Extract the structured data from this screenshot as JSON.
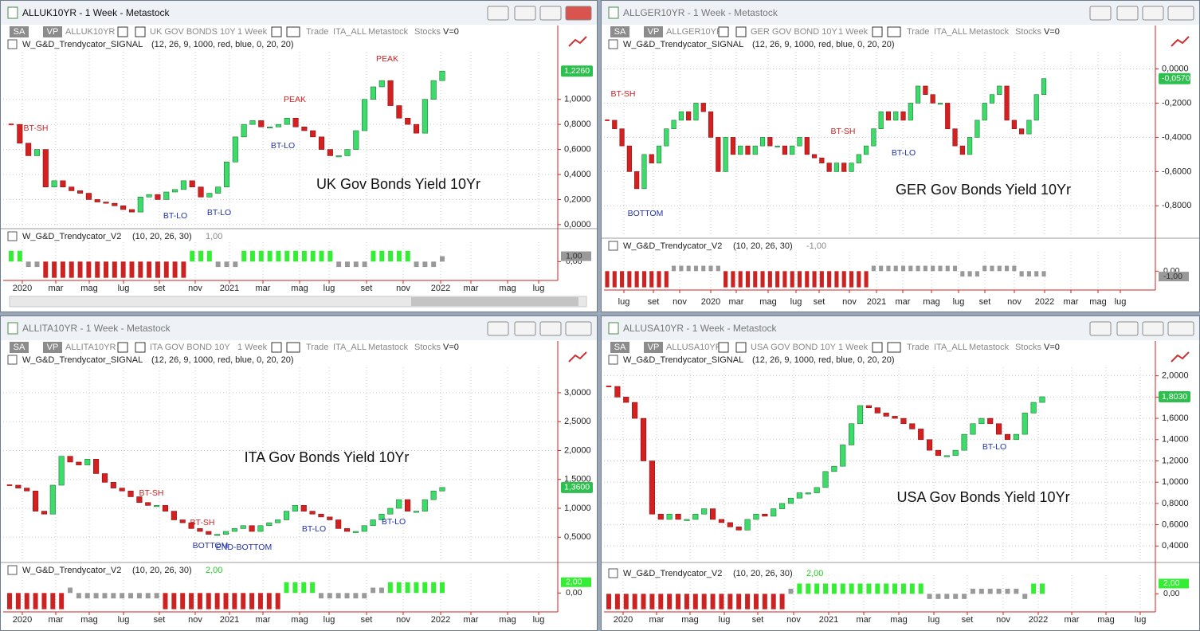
{
  "chart_data": [
    {
      "type": "candlestick",
      "title": "ALLUK10YR - 1 Week - Metastock",
      "buttons": [
        "SA",
        "VP"
      ],
      "symbol": "ALLUK10YR",
      "name": "UK GOV BONDS 10Y",
      "period": "1 Week",
      "toolbar": [
        "Trade",
        "ITA_ALL",
        "Metastock",
        "Stocks",
        "V=0"
      ],
      "signal": {
        "name": "W_G&D_Trendycator_SIGNAL",
        "params": "(12, 26, 9, 1000, red, blue, 0, 20, 20)"
      },
      "subtitle": "UK Gov Bonds Yield 10Yr",
      "annotations": [
        {
          "text": "BT-SH",
          "color": "#cc2222"
        },
        {
          "text": "BT-LO",
          "color": "#2233aa"
        },
        {
          "text": "BT-LO",
          "color": "#2233aa"
        },
        {
          "text": "PEAK",
          "color": "#cc2222"
        },
        {
          "text": "BT-LO",
          "color": "#2233aa"
        },
        {
          "text": "PEAK",
          "color": "#cc2222"
        }
      ],
      "colors": {
        "up": "#3ddc6a",
        "down": "#d42020"
      },
      "values": [
        0.8,
        0.65,
        0.55,
        0.6,
        0.3,
        0.35,
        0.3,
        0.27,
        0.25,
        0.2,
        0.18,
        0.17,
        0.15,
        0.12,
        0.1,
        0.22,
        0.24,
        0.2,
        0.26,
        0.28,
        0.35,
        0.3,
        0.22,
        0.25,
        0.3,
        0.5,
        0.7,
        0.8,
        0.83,
        0.78,
        0.78,
        0.8,
        0.85,
        0.78,
        0.75,
        0.7,
        0.6,
        0.55,
        0.55,
        0.6,
        0.75,
        1.0,
        1.1,
        1.15,
        0.95,
        0.85,
        0.8,
        0.73,
        1.0,
        1.15,
        1.226
      ],
      "ylim": [
        -0.02,
        1.38
      ],
      "yticks": [
        {
          "value": 0,
          "label": "0,0000"
        },
        {
          "value": 0.2,
          "label": "0,2000"
        },
        {
          "value": 0.4,
          "label": "0,4000"
        },
        {
          "value": 0.6,
          "label": "0,6000"
        },
        {
          "value": 0.8,
          "label": "0,8000"
        },
        {
          "value": 1.0,
          "label": "1,0000"
        }
      ],
      "last_value": {
        "value": 1.226,
        "label": "1,2260"
      },
      "x_labels": [
        "2020",
        "mar",
        "mag",
        "lug",
        "set",
        "nov",
        "2021",
        "mar",
        "mag",
        "lug",
        "set",
        "nov",
        "2022",
        "mar",
        "mag",
        "lug"
      ],
      "indicator": {
        "name": "W_G&D_Trendycator_V2",
        "params": "(10, 20, 26, 30)",
        "last": {
          "value": 1,
          "label": "1,00"
        },
        "ylim": [
          -3.2,
          3
        ],
        "yticks": [
          {
            "value": 0,
            "label": "0,00"
          }
        ],
        "colors": {
          "up": "#33ee33",
          "flat": "#999999",
          "down": "#cc2222"
        },
        "values": [
          2,
          2,
          -1,
          -1,
          -3,
          -3,
          -3,
          -3,
          -3,
          -3,
          -3,
          -3,
          -3,
          -3,
          -3,
          -3,
          -3,
          -3,
          -3,
          -3,
          -3,
          2,
          2,
          2,
          -1,
          -1,
          -1,
          2,
          2,
          2,
          2,
          2,
          2,
          2,
          2,
          2,
          2,
          2,
          -1,
          -1,
          -1,
          -1,
          2,
          2,
          2,
          2,
          2,
          -1,
          -1,
          -1,
          1
        ]
      }
    },
    {
      "type": "candlestick",
      "title": "ALLGER10YR - 1 Week - Metastock",
      "buttons": [
        "SA",
        "VP"
      ],
      "symbol": "ALLGER10YR",
      "name": "GER GOV BOND 10Y",
      "period": "1 Week",
      "toolbar": [
        "Trade",
        "ITA_ALL",
        "Metastock",
        "Stocks",
        "V=0"
      ],
      "signal": {
        "name": "W_G&D_Trendycator_SIGNAL",
        "params": "(12, 26, 9, 1000, red, blue, 0, 20, 20)"
      },
      "subtitle": "GER Gov Bonds Yield 10Yr",
      "annotations": [
        {
          "text": "BT-SH",
          "color": "#cc2222"
        },
        {
          "text": "BOTTOM",
          "color": "#2233aa"
        },
        {
          "text": "BT-SH",
          "color": "#cc2222"
        },
        {
          "text": "BT-LO",
          "color": "#2233aa"
        }
      ],
      "colors": {
        "up": "#3ddc6a",
        "down": "#d42020"
      },
      "values": [
        -0.3,
        -0.35,
        -0.45,
        -0.6,
        -0.7,
        -0.5,
        -0.55,
        -0.45,
        -0.35,
        -0.3,
        -0.25,
        -0.3,
        -0.2,
        -0.25,
        -0.4,
        -0.6,
        -0.4,
        -0.5,
        -0.45,
        -0.5,
        -0.45,
        -0.4,
        -0.45,
        -0.45,
        -0.5,
        -0.45,
        -0.4,
        -0.5,
        -0.52,
        -0.55,
        -0.6,
        -0.55,
        -0.6,
        -0.55,
        -0.5,
        -0.45,
        -0.35,
        -0.25,
        -0.3,
        -0.25,
        -0.3,
        -0.2,
        -0.1,
        -0.15,
        -0.2,
        -0.2,
        -0.35,
        -0.45,
        -0.5,
        -0.4,
        -0.3,
        -0.2,
        -0.15,
        -0.1,
        -0.3,
        -0.35,
        -0.38,
        -0.3,
        -0.15,
        -0.057
      ],
      "ylim": [
        -0.98,
        0.1
      ],
      "yticks": [
        {
          "value": 0,
          "label": "0,0000"
        },
        {
          "value": -0.2,
          "label": "-0,2000"
        },
        {
          "value": -0.4,
          "label": "-0,4000"
        },
        {
          "value": -0.6,
          "label": "-0,6000"
        },
        {
          "value": -0.8,
          "label": "-0,8000"
        }
      ],
      "last_value": {
        "value": -0.057,
        "label": "-0,0570"
      },
      "x_labels": [
        "lug",
        "set",
        "nov",
        "2020",
        "mar",
        "mag",
        "lug",
        "set",
        "nov",
        "2021",
        "mar",
        "mag",
        "lug",
        "set",
        "nov",
        "2022",
        "mar",
        "mag",
        "lug"
      ],
      "indicator": {
        "name": "W_G&D_Trendycator_V2",
        "params": "(10, 20, 26, 30)",
        "last": {
          "value": -1,
          "label": "-1,00"
        },
        "ylim": [
          -3.2,
          3
        ],
        "yticks": [
          {
            "value": 0,
            "label": "0,00"
          }
        ],
        "colors": {
          "up": "#33ee33",
          "flat": "#999999",
          "down": "#cc2222"
        },
        "values": [
          -3,
          -3,
          -3,
          -3,
          -3,
          -3,
          -3,
          -3,
          -3,
          1,
          1,
          1,
          1,
          1,
          1,
          1,
          -3,
          -3,
          -3,
          -3,
          -3,
          -3,
          -3,
          -3,
          -3,
          -3,
          -3,
          -3,
          -3,
          -3,
          -3,
          -3,
          -3,
          -3,
          -3,
          -3,
          1,
          1,
          1,
          1,
          1,
          1,
          1,
          1,
          1,
          1,
          1,
          1,
          -1,
          -1,
          -1,
          1,
          1,
          1,
          1,
          1,
          -1,
          -1,
          -1,
          -1
        ]
      }
    },
    {
      "type": "candlestick",
      "title": "ALLITA10YR - 1 Week - Metastock",
      "buttons": [
        "SA",
        "VP"
      ],
      "symbol": "ALLITA10YR",
      "name": "ITA GOV BOND 10Y",
      "period": "1 Week",
      "toolbar": [
        "Trade",
        "ITA_ALL",
        "Metastock",
        "Stocks",
        "V=0"
      ],
      "signal": {
        "name": "W_G&D_Trendycator_SIGNAL",
        "params": "(12, 26, 9, 1000, red, blue, 0, 20, 20)"
      },
      "subtitle": "ITA Gov Bonds Yield 10Yr",
      "annotations": [
        {
          "text": "BT-SH",
          "color": "#cc2222"
        },
        {
          "text": "BT-SH",
          "color": "#cc2222"
        },
        {
          "text": "BOTTOM",
          "color": "#2233aa"
        },
        {
          "text": "END-BOTTOM",
          "color": "#2233aa"
        },
        {
          "text": "BT-LO",
          "color": "#2233aa"
        },
        {
          "text": "BT-LO",
          "color": "#2233aa"
        }
      ],
      "colors": {
        "up": "#3ddc6a",
        "down": "#d42020"
      },
      "values": [
        1.4,
        1.35,
        1.3,
        0.95,
        0.9,
        1.4,
        1.9,
        1.8,
        1.75,
        1.85,
        1.6,
        1.45,
        1.35,
        1.3,
        1.2,
        1.1,
        1.05,
        1.05,
        0.95,
        0.8,
        0.75,
        0.65,
        0.6,
        0.55,
        0.55,
        0.6,
        0.65,
        0.7,
        0.6,
        0.7,
        0.75,
        0.8,
        0.95,
        1.05,
        0.95,
        0.9,
        0.85,
        0.8,
        0.65,
        0.6,
        0.6,
        0.7,
        0.8,
        0.9,
        1.0,
        1.15,
        0.95,
        0.95,
        1.15,
        1.3,
        1.36
      ],
      "ylim": [
        0.09,
        3.44
      ],
      "yticks": [
        {
          "value": 0.5,
          "label": "0,5000"
        },
        {
          "value": 1.0,
          "label": "1,0000"
        },
        {
          "value": 1.5,
          "label": "1,5000"
        },
        {
          "value": 2.0,
          "label": "2,0000"
        },
        {
          "value": 2.5,
          "label": "2,5000"
        },
        {
          "value": 3.0,
          "label": "3,0000"
        }
      ],
      "last_value": {
        "value": 1.36,
        "label": "1,3600"
      },
      "x_labels": [
        "2020",
        "mar",
        "mag",
        "lug",
        "set",
        "nov",
        "2021",
        "mar",
        "mag",
        "lug",
        "set",
        "nov",
        "2022",
        "mar",
        "mag",
        "lug"
      ],
      "indicator": {
        "name": "W_G&D_Trendycator_V2",
        "params": "(10, 20, 26, 30)",
        "last": {
          "value": 2,
          "label": "2,00"
        },
        "ylim": [
          -3.2,
          3
        ],
        "yticks": [
          {
            "value": 0,
            "label": "0,00"
          }
        ],
        "colors": {
          "up": "#33ee33",
          "flat": "#999999",
          "down": "#cc2222"
        },
        "values": [
          -3,
          -3,
          -3,
          -3,
          -3,
          -3,
          -3,
          1,
          -1,
          -1,
          -1,
          -1,
          -1,
          -1,
          -1,
          -1,
          -1,
          -1,
          -3,
          -3,
          -3,
          -3,
          -3,
          -3,
          -3,
          -3,
          -3,
          -3,
          -3,
          -3,
          -3,
          -3,
          2,
          2,
          2,
          2,
          -1,
          -1,
          -1,
          -1,
          -1,
          -1,
          1,
          1,
          2,
          2,
          2,
          2,
          2,
          2,
          2
        ]
      }
    },
    {
      "type": "candlestick",
      "title": "ALLUSA10YR - 1 Week - Metastock",
      "buttons": [
        "SA",
        "VP"
      ],
      "symbol": "ALLUSA10YR",
      "name": "USA GOV BOND 10Y",
      "period": "1 Week",
      "toolbar": [
        "Trade",
        "ITA_ALL",
        "Metastock",
        "Stocks",
        "V=0"
      ],
      "signal": {
        "name": "W_G&D_Trendycator_SIGNAL",
        "params": "(12, 26, 9, 1000, red, blue, 0, 20, 20)"
      },
      "subtitle": "USA Gov Bonds Yield 10Yr",
      "annotations": [
        {
          "text": "BT-LO",
          "color": "#2233aa"
        }
      ],
      "colors": {
        "up": "#3ddc6a",
        "down": "#d42020"
      },
      "values": [
        1.9,
        1.8,
        1.75,
        1.6,
        1.2,
        0.7,
        0.65,
        0.7,
        0.65,
        0.65,
        0.7,
        0.75,
        0.65,
        0.62,
        0.58,
        0.55,
        0.65,
        0.7,
        0.68,
        0.75,
        0.8,
        0.85,
        0.9,
        0.9,
        0.95,
        1.1,
        1.15,
        1.35,
        1.55,
        1.72,
        1.7,
        1.65,
        1.62,
        1.6,
        1.55,
        1.5,
        1.4,
        1.3,
        1.25,
        1.25,
        1.3,
        1.45,
        1.55,
        1.6,
        1.55,
        1.45,
        1.4,
        1.45,
        1.65,
        1.75,
        1.803
      ],
      "ylim": [
        0.26,
        2.08
      ],
      "yticks": [
        {
          "value": 0.4,
          "label": "0,4000"
        },
        {
          "value": 0.6,
          "label": "0,6000"
        },
        {
          "value": 0.8,
          "label": "0,8000"
        },
        {
          "value": 1.0,
          "label": "1,0000"
        },
        {
          "value": 1.2,
          "label": "1,2000"
        },
        {
          "value": 1.4,
          "label": "1,4000"
        },
        {
          "value": 1.6,
          "label": "1,6000"
        },
        {
          "value": 1.8,
          "label": "1,8000"
        },
        {
          "value": 2.0,
          "label": "2,0000"
        }
      ],
      "last_value": {
        "value": 1.803,
        "label": "1,8030"
      },
      "x_labels": [
        "2020",
        "mar",
        "mag",
        "lug",
        "set",
        "nov",
        "2021",
        "mar",
        "mag",
        "lug",
        "set",
        "nov",
        "2022",
        "mar",
        "mag",
        "lug"
      ],
      "indicator": {
        "name": "W_G&D_Trendycator_V2",
        "params": "(10, 20, 26, 30)",
        "last": {
          "value": 2,
          "label": "2,00"
        },
        "ylim": [
          -3.2,
          3
        ],
        "yticks": [
          {
            "value": 0,
            "label": "0,00"
          }
        ],
        "colors": {
          "up": "#33ee33",
          "flat": "#999999",
          "down": "#cc2222"
        },
        "values": [
          -3,
          -3,
          -3,
          -3,
          -3,
          -3,
          -3,
          -3,
          -3,
          -3,
          -3,
          -3,
          -3,
          -3,
          -3,
          -3,
          -3,
          -3,
          -3,
          -3,
          -3,
          1,
          2,
          2,
          2,
          2,
          2,
          2,
          2,
          2,
          2,
          2,
          2,
          2,
          2,
          2,
          2,
          -1,
          -1,
          -1,
          -1,
          -1,
          1,
          1,
          1,
          1,
          1,
          1,
          -1,
          2,
          2
        ]
      }
    }
  ]
}
